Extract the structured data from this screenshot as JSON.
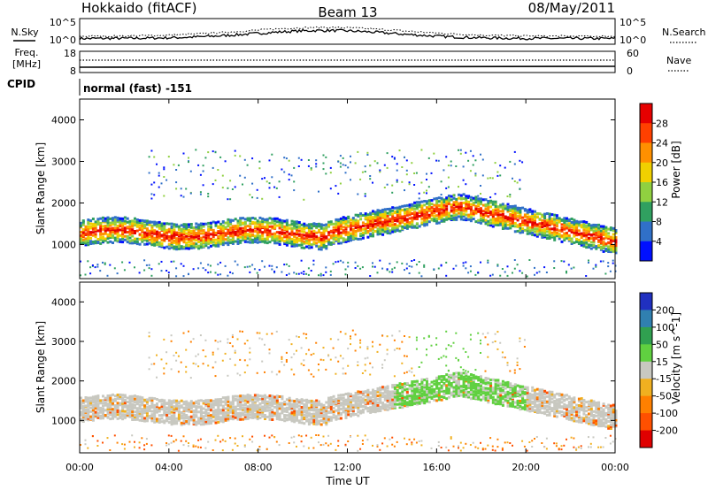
{
  "header": {
    "site": "Hokkaido (fitACF)",
    "beam": "Beam 13",
    "date": "08/May/2011"
  },
  "top_panel": {
    "left_label": "N.Sky",
    "right_label": "N.Search",
    "left_ticks": [
      "10^5",
      "10^0"
    ],
    "right_ticks": [
      "10^5",
      "10^0"
    ]
  },
  "freq_panel": {
    "left_label_line1": "Freq.",
    "left_label_line2": "[MHz]",
    "right_label": "Nave",
    "left_ticks": [
      "18",
      "8"
    ],
    "right_ticks": [
      "60",
      "0"
    ]
  },
  "cpid": {
    "label": "CPID",
    "value": "normal (fast) -151"
  },
  "chart_data": [
    {
      "type": "heatmap",
      "quantity": "Power",
      "ylabel": "Slant Range [km]",
      "xlabel": "Time UT",
      "xlim_hours": [
        0,
        24
      ],
      "ylim_km": [
        180,
        4500
      ],
      "colorbar_label": "Power [dB]",
      "colorbar_ticks": [
        "28",
        "24",
        "20",
        "16",
        "12",
        "8",
        "4"
      ],
      "colorbar_colors": [
        "#e60000",
        "#ff4000",
        "#ff9000",
        "#f0d000",
        "#90d040",
        "#30a060",
        "#3070c8",
        "#0010ff"
      ],
      "features": [
        {
          "name": "low-range band",
          "time_hours": [
            0,
            11
          ],
          "range_km": [
            900,
            1600
          ],
          "power_db": [
            8,
            24
          ]
        },
        {
          "name": "rising arc",
          "time_hours": [
            11,
            17
          ],
          "range_km": [
            1500,
            2100
          ],
          "power_db": [
            18,
            28
          ]
        },
        {
          "name": "descending arc",
          "time_hours": [
            17,
            24
          ],
          "range_km": [
            1000,
            1900
          ],
          "power_db": [
            20,
            30
          ]
        }
      ]
    },
    {
      "type": "heatmap",
      "quantity": "Velocity",
      "ylabel": "Slant Range [km]",
      "xlabel": "Time UT",
      "xlim_hours": [
        0,
        24
      ],
      "ylim_km": [
        180,
        4500
      ],
      "colorbar_label": "Velocity [m s^-1]",
      "colorbar_ticks": [
        "200",
        "100",
        "50",
        "15",
        "-15",
        "-50",
        "-100",
        "-200"
      ],
      "colorbar_colors": [
        "#2030c0",
        "#3080b0",
        "#30a050",
        "#60d040",
        "#c8c8c0",
        "#f0b020",
        "#ff8000",
        "#ff5000",
        "#e00000"
      ],
      "features": [
        {
          "name": "gray low-velocity band",
          "time_hours": [
            0,
            11
          ],
          "range_km": [
            900,
            1600
          ],
          "velocity_ms": [
            -15,
            15
          ]
        },
        {
          "name": "green positive arc",
          "time_hours": [
            14,
            20
          ],
          "range_km": [
            1500,
            3300
          ],
          "velocity_ms": [
            15,
            50
          ]
        }
      ]
    }
  ],
  "time_axis": {
    "label": "Time UT",
    "ticks": [
      "00:00",
      "04:00",
      "08:00",
      "12:00",
      "16:00",
      "20:00",
      "00:00"
    ]
  },
  "range_ticks": [
    "1000",
    "2000",
    "3000",
    "4000"
  ]
}
